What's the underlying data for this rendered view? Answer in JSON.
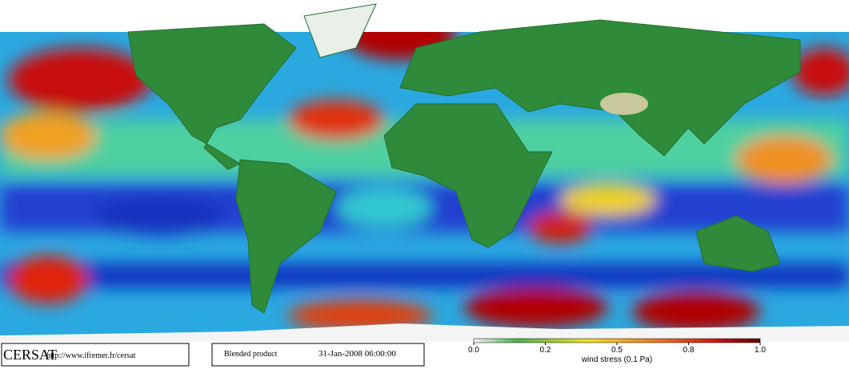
{
  "footer": {
    "logo": "CERSAT",
    "url": "http://www.ifremer.fr/cersat",
    "product": "Blended product",
    "datetime": "31-Jan-2008 06:00:00"
  },
  "colorbar": {
    "label": "wind stress (0.1 Pa)",
    "ticks": [
      {
        "value": 0,
        "label": "0.0"
      },
      {
        "value": 0.2,
        "label": "0.2"
      },
      {
        "value": 0.5,
        "label": "0.5"
      },
      {
        "value": 0.8,
        "label": "0.8"
      },
      {
        "value": 1,
        "label": "1.0"
      }
    ]
  }
}
